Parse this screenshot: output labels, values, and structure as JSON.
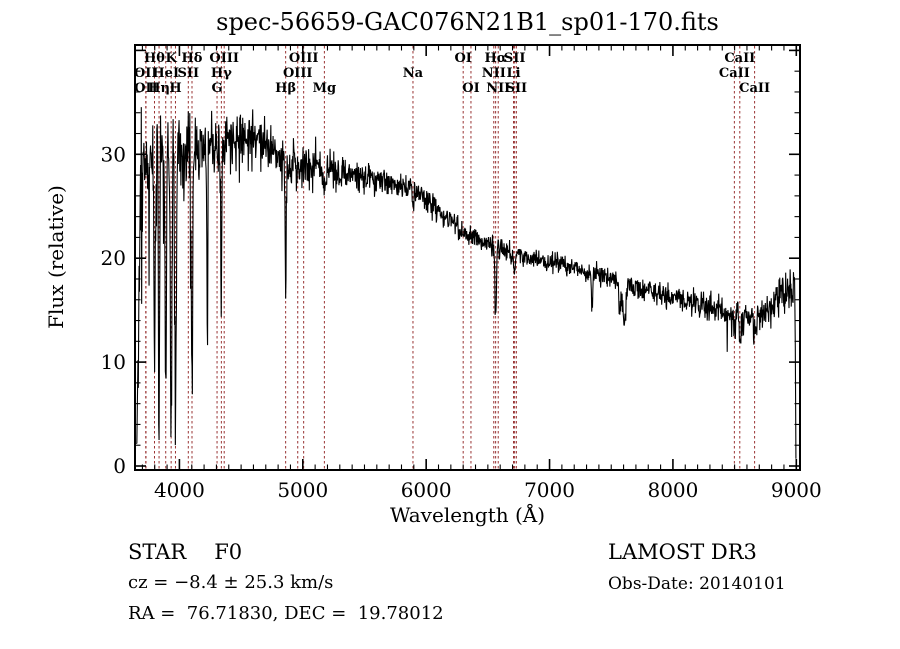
{
  "chart_data": {
    "type": "line",
    "title": "spec-56659-GAC076N21B1_sp01-170.fits",
    "xlabel": "Wavelength (Å)",
    "ylabel": "Flux (relative)",
    "xlim": [
      3640,
      9030
    ],
    "ylim": [
      0,
      40.5
    ],
    "xticks": [
      4000,
      5000,
      6000,
      7000,
      8000,
      9000
    ],
    "yticks": [
      0,
      10,
      20,
      30
    ],
    "x_minor_step": 100,
    "y_minor_step": 2,
    "grid": false,
    "background": "#ffffff",
    "axis_color": "#000000",
    "spectrum_color": "#000000",
    "line_marker_color": "#993333",
    "continuum_points": [
      [
        3640,
        14
      ],
      [
        3665,
        22
      ],
      [
        3700,
        27
      ],
      [
        3760,
        29
      ],
      [
        3850,
        30
      ],
      [
        3950,
        30.2
      ],
      [
        4100,
        30.6
      ],
      [
        4300,
        30.8
      ],
      [
        4500,
        31.2
      ],
      [
        4650,
        31.0
      ],
      [
        4800,
        30.0
      ],
      [
        4900,
        29.2
      ],
      [
        5000,
        28.8
      ],
      [
        5150,
        28.8
      ],
      [
        5300,
        28.4
      ],
      [
        5500,
        27.8
      ],
      [
        5700,
        27.2
      ],
      [
        5900,
        26.6
      ],
      [
        6100,
        24.6
      ],
      [
        6300,
        22.4
      ],
      [
        6500,
        21.4
      ],
      [
        6700,
        20.4
      ],
      [
        6900,
        19.8
      ],
      [
        7100,
        19.4
      ],
      [
        7300,
        18.7
      ],
      [
        7500,
        18.1
      ],
      [
        7700,
        17.3
      ],
      [
        7900,
        16.6
      ],
      [
        8100,
        15.9
      ],
      [
        8300,
        15.2
      ],
      [
        8500,
        14.5
      ],
      [
        8650,
        14.1
      ],
      [
        8780,
        15.2
      ],
      [
        8880,
        16.6
      ],
      [
        8950,
        17.2
      ],
      [
        9000,
        16.8
      ]
    ],
    "noise_sigma_points": [
      [
        3650,
        4.5
      ],
      [
        3690,
        3.2
      ],
      [
        3740,
        2.4
      ],
      [
        3800,
        1.9
      ],
      [
        3900,
        1.8
      ],
      [
        4000,
        1.6
      ],
      [
        4200,
        1.5
      ],
      [
        4450,
        1.45
      ],
      [
        4700,
        1.2
      ],
      [
        5000,
        1.05
      ],
      [
        5300,
        0.9
      ],
      [
        5600,
        0.7
      ],
      [
        5900,
        0.6
      ],
      [
        6200,
        0.55
      ],
      [
        6600,
        0.5
      ],
      [
        7000,
        0.5
      ],
      [
        7400,
        0.55
      ],
      [
        7800,
        0.55
      ],
      [
        8200,
        0.6
      ],
      [
        8500,
        0.75
      ],
      [
        8800,
        0.95
      ],
      [
        9000,
        1.1
      ]
    ],
    "absorption_features": [
      {
        "center": 3798,
        "bottom": 12,
        "sigma": 5
      },
      {
        "center": 3835,
        "bottom": 5,
        "sigma": 5
      },
      {
        "center": 3889,
        "bottom": 8,
        "sigma": 5
      },
      {
        "center": 3933,
        "bottom": 3.5,
        "sigma": 6
      },
      {
        "center": 3969,
        "bottom": 6,
        "sigma": 6
      },
      {
        "center": 4102,
        "bottom": 9,
        "sigma": 6
      },
      {
        "center": 4226,
        "bottom": 14,
        "sigma": 4
      },
      {
        "center": 4340,
        "bottom": 18,
        "sigma": 5
      },
      {
        "center": 4861,
        "bottom": 17.5,
        "sigma": 5
      },
      {
        "center": 5175,
        "bottom": 26.5,
        "sigma": 9
      },
      {
        "center": 5893,
        "bottom": 25,
        "sigma": 7
      },
      {
        "center": 6563,
        "bottom": 14,
        "sigma": 6
      },
      {
        "center": 6717,
        "bottom": 18.7,
        "sigma": 8
      },
      {
        "center": 7345,
        "bottom": 15.8,
        "sigma": 6
      },
      {
        "center": 7570,
        "bottom": 15,
        "sigma": 9
      },
      {
        "center": 7605,
        "bottom": 13.5,
        "sigma": 11
      },
      {
        "center": 8498,
        "bottom": 13,
        "sigma": 6
      },
      {
        "center": 8542,
        "bottom": 12,
        "sigma": 7
      },
      {
        "center": 8662,
        "bottom": 12.5,
        "sigma": 7
      }
    ],
    "noise_spikes": [
      {
        "range": [
          3680,
          4150
        ],
        "prob": 0.05,
        "max": 13,
        "dir": -1
      },
      {
        "range": [
          4150,
          4750
        ],
        "prob": 0.03,
        "max": 8,
        "dir": -1
      },
      {
        "range": [
          4750,
          5250
        ],
        "prob": 0.015,
        "max": 4,
        "dir": -1
      },
      {
        "range": [
          8300,
          8700
        ],
        "prob": 0.02,
        "max": 3,
        "dir": -1
      },
      {
        "range": [
          8650,
          8980
        ],
        "prob": 0.05,
        "max": 2.5,
        "dir": 1
      }
    ],
    "spectral_lines": [
      {
        "label": "Hθ",
        "wavelength": 3798,
        "row": 1
      },
      {
        "label": "K",
        "wavelength": 3933,
        "row": 1
      },
      {
        "label": "Hδ",
        "wavelength": 4102,
        "row": 1
      },
      {
        "label": "OIII",
        "wavelength": 4363,
        "row": 1
      },
      {
        "label": "OIII",
        "wavelength": 5007,
        "row": 1
      },
      {
        "label": "OI",
        "wavelength": 6300,
        "row": 1
      },
      {
        "label": "Hα",
        "wavelength": 6563,
        "row": 1
      },
      {
        "label": "SII",
        "wavelength": 6717,
        "row": 1
      },
      {
        "label": "CaII",
        "wavelength": 8542,
        "row": 1
      },
      {
        "label": "OII",
        "wavelength": 3727,
        "row": 2
      },
      {
        "label": "HeI",
        "wavelength": 3889,
        "row": 2
      },
      {
        "label": "SII",
        "wavelength": 4072,
        "row": 2
      },
      {
        "label": "Hγ",
        "wavelength": 4340,
        "row": 2
      },
      {
        "label": "OIII",
        "wavelength": 4959,
        "row": 2
      },
      {
        "label": "Na",
        "wavelength": 5893,
        "row": 2
      },
      {
        "label": "NII",
        "wavelength": 6548,
        "row": 2
      },
      {
        "label": "Li",
        "wavelength": 6708,
        "row": 2
      },
      {
        "label": "CaII",
        "wavelength": 8498,
        "row": 2
      },
      {
        "label": "OII",
        "wavelength": 3729,
        "row": 3
      },
      {
        "label": "Hη",
        "wavelength": 3835,
        "row": 3
      },
      {
        "label": "H",
        "wavelength": 3968,
        "row": 3
      },
      {
        "label": "G",
        "wavelength": 4305,
        "row": 3
      },
      {
        "label": "Hβ",
        "wavelength": 4861,
        "row": 3
      },
      {
        "label": "Mg",
        "wavelength": 5175,
        "row": 3
      },
      {
        "label": "OI",
        "wavelength": 6363,
        "row": 3
      },
      {
        "label": "NII",
        "wavelength": 6584,
        "row": 3
      },
      {
        "label": "SII",
        "wavelength": 6731,
        "row": 3
      },
      {
        "label": "CaII",
        "wavelength": 8662,
        "row": 3
      }
    ]
  },
  "annotations": {
    "class_label": "STAR",
    "subclass_label": "F0",
    "survey": "LAMOST DR3",
    "cz": "cz = −8.4 ± 25.3 km/s",
    "obs_date": "Obs-Date: 20140101",
    "coords": "RA =  76.71830, DEC =  19.78012"
  }
}
